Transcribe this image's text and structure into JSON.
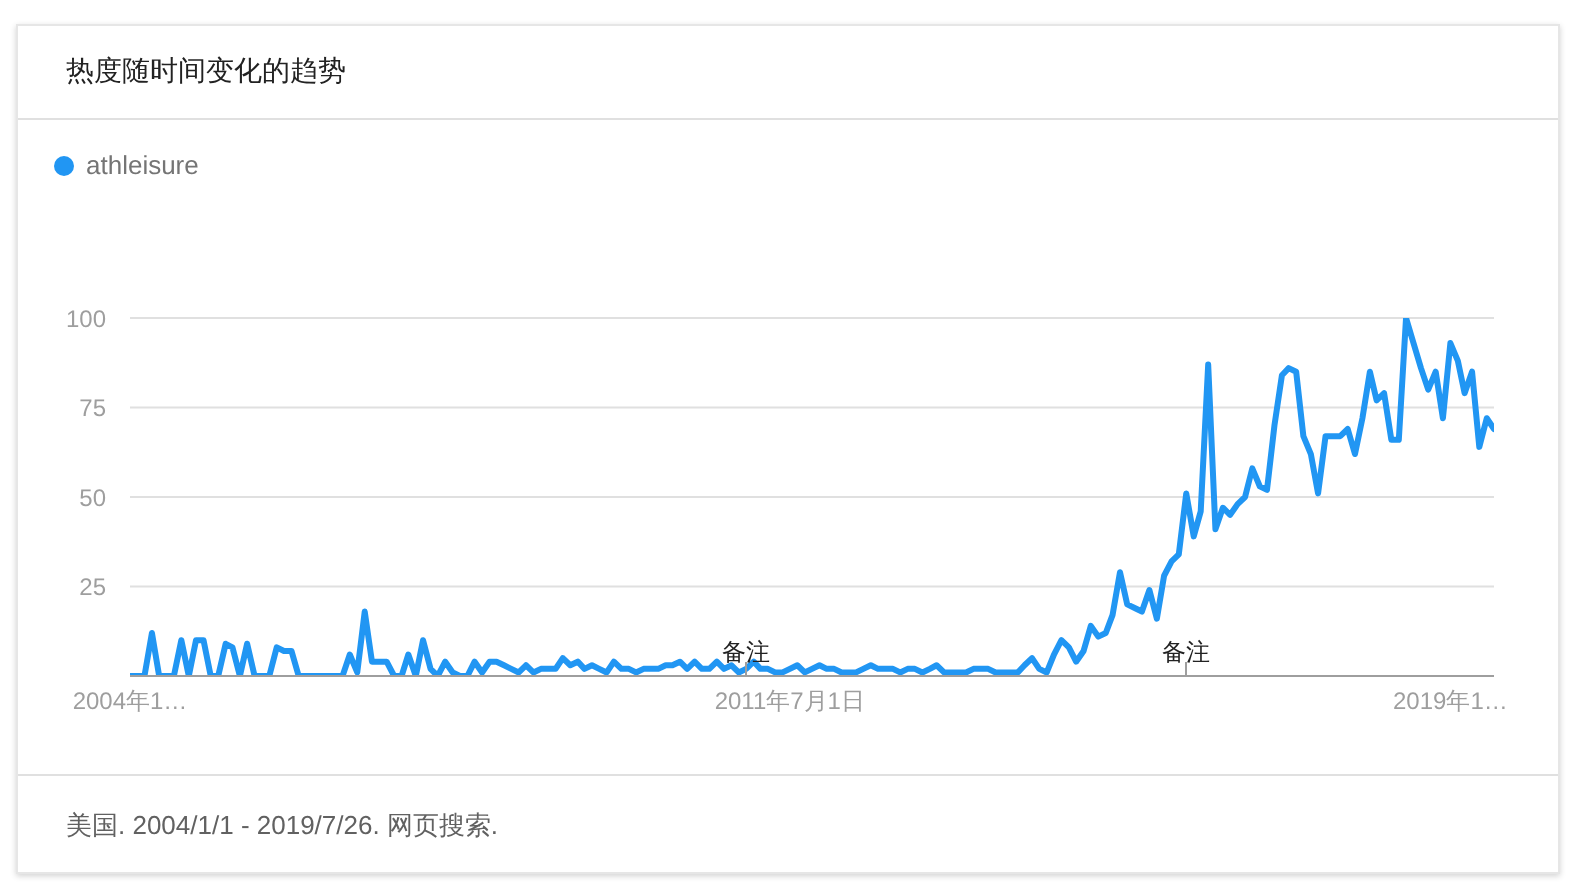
{
  "chart_data": {
    "type": "line",
    "title": "热度随时间变化的趋势",
    "annotations": [
      "备注",
      "备注",
      "美国. 2004/1/1 - 2019/7/26. 网页搜索."
    ],
    "x": [
      "2004-01",
      "2004-02",
      "2004-03",
      "2004-04",
      "2004-05",
      "2004-06",
      "2004-07",
      "2004-08",
      "2004-09",
      "2004-10",
      "2004-11",
      "2004-12",
      "2005-01",
      "2005-02",
      "2005-03",
      "2005-04",
      "2005-05",
      "2005-06",
      "2005-07",
      "2005-08",
      "2005-09",
      "2005-10",
      "2005-11",
      "2005-12",
      "2006-01",
      "2006-02",
      "2006-03",
      "2006-04",
      "2006-05",
      "2006-06",
      "2006-07",
      "2006-08",
      "2006-09",
      "2006-10",
      "2006-11",
      "2006-12",
      "2007-01",
      "2007-02",
      "2007-03",
      "2007-04",
      "2007-05",
      "2007-06",
      "2007-07",
      "2007-08",
      "2007-09",
      "2007-10",
      "2007-11",
      "2007-12",
      "2008-01",
      "2008-02",
      "2008-03",
      "2008-04",
      "2008-05",
      "2008-06",
      "2008-07",
      "2008-08",
      "2008-09",
      "2008-10",
      "2008-11",
      "2008-12",
      "2009-01",
      "2009-02",
      "2009-03",
      "2009-04",
      "2009-05",
      "2009-06",
      "2009-07",
      "2009-08",
      "2009-09",
      "2009-10",
      "2009-11",
      "2009-12",
      "2010-01",
      "2010-02",
      "2010-03",
      "2010-04",
      "2010-05",
      "2010-06",
      "2010-07",
      "2010-08",
      "2010-09",
      "2010-10",
      "2010-11",
      "2010-12",
      "2011-01",
      "2011-02",
      "2011-03",
      "2011-04",
      "2011-05",
      "2011-06",
      "2011-07",
      "2011-08",
      "2011-09",
      "2011-10",
      "2011-11",
      "2011-12",
      "2012-01",
      "2012-02",
      "2012-03",
      "2012-04",
      "2012-05",
      "2012-06",
      "2012-07",
      "2012-08",
      "2012-09",
      "2012-10",
      "2012-11",
      "2012-12",
      "2013-01",
      "2013-02",
      "2013-03",
      "2013-04",
      "2013-05",
      "2013-06",
      "2013-07",
      "2013-08",
      "2013-09",
      "2013-10",
      "2013-11",
      "2013-12",
      "2014-01",
      "2014-02",
      "2014-03",
      "2014-04",
      "2014-05",
      "2014-06",
      "2014-07",
      "2014-08",
      "2014-09",
      "2014-10",
      "2014-11",
      "2014-12",
      "2015-01",
      "2015-02",
      "2015-03",
      "2015-04",
      "2015-05",
      "2015-06",
      "2015-07",
      "2015-08",
      "2015-09",
      "2015-10",
      "2015-11",
      "2015-12",
      "2016-01",
      "2016-02",
      "2016-03",
      "2016-04",
      "2016-05",
      "2016-06",
      "2016-07",
      "2016-08",
      "2016-09",
      "2016-10",
      "2016-11",
      "2016-12",
      "2017-01",
      "2017-02",
      "2017-03",
      "2017-04",
      "2017-05",
      "2017-06",
      "2017-07",
      "2017-08",
      "2017-09",
      "2017-10",
      "2017-11",
      "2017-12",
      "2018-01",
      "2018-02",
      "2018-03",
      "2018-04",
      "2018-05",
      "2018-06",
      "2018-07",
      "2018-08",
      "2018-09",
      "2018-10",
      "2018-11",
      "2018-12",
      "2019-01",
      "2019-02",
      "2019-03",
      "2019-04",
      "2019-05",
      "2019-06",
      "2019-07"
    ],
    "series": [
      {
        "name": "athleisure",
        "color": "#2196f3",
        "values": [
          0,
          0,
          0,
          12,
          0,
          0,
          0,
          10,
          0,
          10,
          10,
          0,
          0,
          9,
          8,
          0,
          9,
          0,
          0,
          0,
          8,
          7,
          7,
          0,
          0,
          0,
          0,
          0,
          0,
          0,
          6,
          1,
          18,
          4,
          4,
          4,
          0,
          0,
          6,
          0,
          10,
          2,
          0,
          4,
          1,
          0,
          0,
          4,
          1,
          4,
          4,
          3,
          2,
          1,
          3,
          1,
          2,
          2,
          2,
          5,
          3,
          4,
          2,
          3,
          2,
          1,
          4,
          2,
          2,
          1,
          2,
          2,
          2,
          3,
          3,
          4,
          2,
          4,
          2,
          2,
          4,
          2,
          3,
          1,
          2,
          4,
          2,
          2,
          1,
          1,
          2,
          3,
          1,
          2,
          3,
          2,
          2,
          1,
          1,
          1,
          2,
          3,
          2,
          2,
          2,
          1,
          2,
          2,
          1,
          2,
          3,
          1,
          1,
          1,
          1,
          2,
          2,
          2,
          1,
          1,
          1,
          1,
          3,
          5,
          2,
          1,
          6,
          10,
          8,
          4,
          7,
          14,
          11,
          12,
          17,
          29,
          20,
          19,
          18,
          24,
          16,
          28,
          32,
          34,
          51,
          39,
          46,
          87,
          41,
          47,
          45,
          48,
          50,
          58,
          53,
          52,
          70,
          84,
          86,
          85,
          67,
          62,
          51,
          67,
          67,
          67,
          69,
          62,
          72,
          85,
          77,
          79,
          66,
          66,
          100,
          93,
          86,
          80,
          85,
          72,
          93,
          88,
          79,
          85,
          64,
          72,
          69
        ]
      }
    ],
    "xlim": [
      "2004-01",
      "2019-07"
    ],
    "xticks": [
      {
        "value": "2004-01",
        "label": "2004年1…"
      },
      {
        "value": "2011-07",
        "label": "2011年7月1日"
      },
      {
        "value": "2019-01",
        "label": "2019年1…"
      }
    ],
    "ylim": [
      0,
      100
    ],
    "yticks": [
      25,
      50,
      75,
      100
    ],
    "grid": "y",
    "legend": "top left"
  }
}
